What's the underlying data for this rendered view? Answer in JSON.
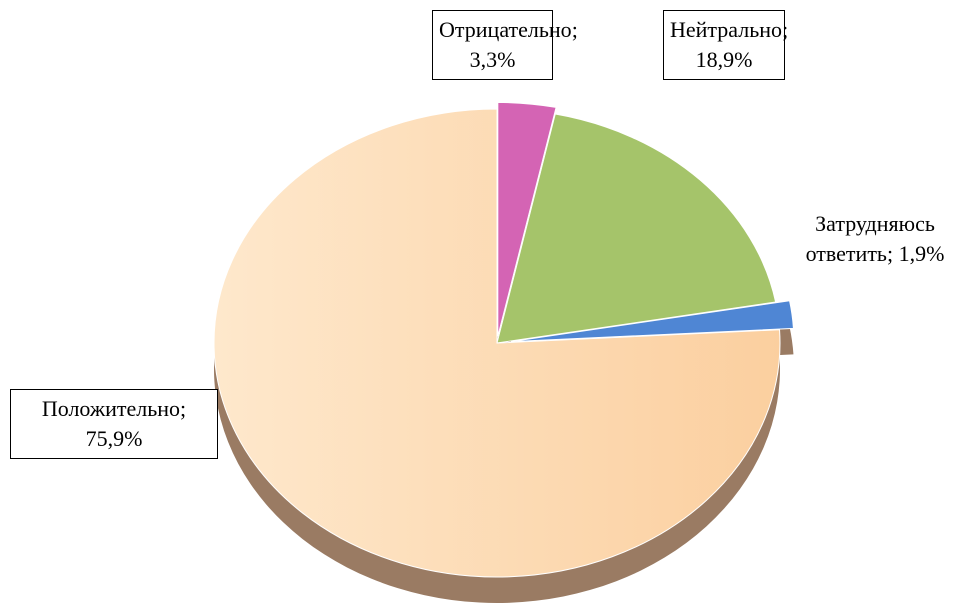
{
  "chart_data": {
    "type": "pie",
    "categories": [
      "Отрицательно",
      "Нейтрально",
      "Затрудняюсь ответить",
      "Положительно"
    ],
    "values": [
      3.3,
      18.9,
      1.9,
      75.9
    ],
    "value_labels": [
      "3,3%",
      "18,9%",
      "1,9%",
      "75,9%"
    ],
    "label_separator": ";",
    "colors": [
      "#d464b4",
      "#a5c46a",
      "#4f86d4",
      "#fbd3aa"
    ],
    "start_angle": 0,
    "clockwise": true
  }
}
